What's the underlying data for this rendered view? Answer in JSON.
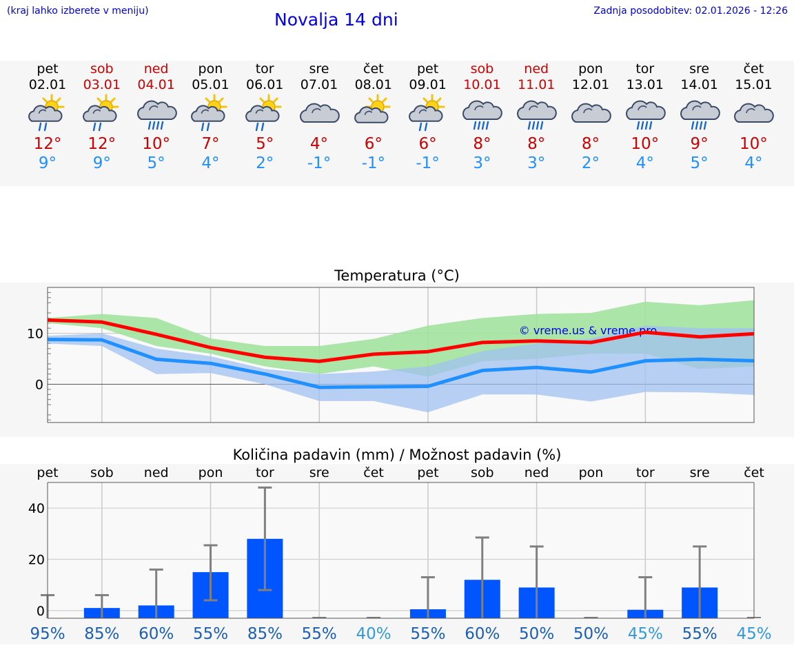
{
  "header": {
    "left_note": "(kraj lahko izberete v meniju)",
    "title": "Novalja 14 dni",
    "updated": "Zadnja posodobitev: 02.01.2026 - 12:26"
  },
  "days": [
    {
      "name": "pet",
      "date": "02.01",
      "weekend": false,
      "icon": "sun-cloud-rain-icon",
      "tmax": "12°",
      "tmin": "9°"
    },
    {
      "name": "sob",
      "date": "03.01",
      "weekend": true,
      "icon": "sun-cloud-rain-icon",
      "tmax": "12°",
      "tmin": "9°"
    },
    {
      "name": "ned",
      "date": "04.01",
      "weekend": true,
      "icon": "cloud-rain-icon",
      "tmax": "10°",
      "tmin": "5°"
    },
    {
      "name": "pon",
      "date": "05.01",
      "weekend": false,
      "icon": "sun-cloud-rain-icon",
      "tmax": "7°",
      "tmin": "4°"
    },
    {
      "name": "tor",
      "date": "06.01",
      "weekend": false,
      "icon": "sun-cloud-rain-icon",
      "tmax": "5°",
      "tmin": "2°"
    },
    {
      "name": "sre",
      "date": "07.01",
      "weekend": false,
      "icon": "cloud-icon",
      "tmax": "4°",
      "tmin": "-1°"
    },
    {
      "name": "čet",
      "date": "08.01",
      "weekend": false,
      "icon": "sun-cloud-icon",
      "tmax": "6°",
      "tmin": "-1°"
    },
    {
      "name": "pet",
      "date": "09.01",
      "weekend": false,
      "icon": "sun-cloud-rain-icon",
      "tmax": "6°",
      "tmin": "-1°"
    },
    {
      "name": "sob",
      "date": "10.01",
      "weekend": true,
      "icon": "cloud-rain-icon",
      "tmax": "8°",
      "tmin": "3°"
    },
    {
      "name": "ned",
      "date": "11.01",
      "weekend": true,
      "icon": "cloud-rain-icon",
      "tmax": "8°",
      "tmin": "3°"
    },
    {
      "name": "pon",
      "date": "12.01",
      "weekend": false,
      "icon": "cloud-icon",
      "tmax": "8°",
      "tmin": "2°"
    },
    {
      "name": "tor",
      "date": "13.01",
      "weekend": false,
      "icon": "cloud-rain-icon",
      "tmax": "10°",
      "tmin": "4°"
    },
    {
      "name": "sre",
      "date": "14.01",
      "weekend": false,
      "icon": "cloud-rain-icon",
      "tmax": "9°",
      "tmin": "5°"
    },
    {
      "name": "čet",
      "date": "15.01",
      "weekend": false,
      "icon": "cloud-icon",
      "tmax": "10°",
      "tmin": "4°"
    }
  ],
  "chart_data": [
    {
      "type": "line",
      "title": "Temperatura (°C)",
      "watermark": "© vreme.us & vreme.pro",
      "ylim": [
        -7.5,
        19
      ],
      "yticks": [
        0,
        10
      ],
      "x": [
        0,
        1,
        2,
        3,
        4,
        5,
        6,
        7,
        8,
        9,
        10,
        11,
        12,
        13
      ],
      "series": [
        {
          "name": "max",
          "color": "#ff0000",
          "values": [
            12.6,
            12.2,
            9.8,
            7.2,
            5.3,
            4.5,
            5.9,
            6.4,
            8.2,
            8.5,
            8.2,
            10.2,
            9.3,
            9.9
          ]
        },
        {
          "name": "min",
          "color": "#2090ff",
          "values": [
            8.8,
            8.7,
            4.9,
            4.1,
            2.0,
            -0.6,
            -0.5,
            -0.4,
            2.7,
            3.3,
            2.4,
            4.6,
            4.9,
            4.6
          ]
        }
      ],
      "bands": [
        {
          "name": "max-range",
          "color": "#9ee39a",
          "low": [
            12.0,
            11.0,
            7.5,
            6.0,
            3.5,
            2.0,
            3.5,
            1.5,
            4.5,
            5.0,
            6.0,
            6.0,
            3.0,
            3.5
          ],
          "high": [
            13.0,
            13.8,
            13.0,
            9.0,
            7.5,
            7.5,
            8.9,
            11.5,
            13.0,
            13.8,
            14.0,
            16.2,
            15.5,
            16.5
          ]
        },
        {
          "name": "min-range",
          "color": "#a0c0f0",
          "low": [
            8.0,
            7.5,
            2.0,
            2.2,
            0.0,
            -3.3,
            -3.3,
            -5.5,
            -2.0,
            -2.0,
            -3.4,
            -1.5,
            -1.6,
            -2.1
          ],
          "high": [
            9.5,
            10.0,
            7.0,
            5.5,
            3.0,
            2.0,
            2.5,
            3.5,
            6.5,
            8.0,
            9.0,
            11.5,
            11.0,
            11.0
          ]
        }
      ]
    },
    {
      "type": "bar",
      "title": "Količina padavin (mm) / Možnost padavin (%)",
      "categories": [
        "pet",
        "sob",
        "ned",
        "pon",
        "tor",
        "sre",
        "čet",
        "pet",
        "sob",
        "ned",
        "pon",
        "tor",
        "sre",
        "čet"
      ],
      "values": [
        0,
        1,
        2,
        15,
        28,
        0,
        0,
        0.5,
        12,
        9,
        0,
        0.3,
        9,
        0
      ],
      "error_high": [
        6,
        6,
        16,
        25.5,
        48,
        0,
        0,
        13,
        28.5,
        25,
        0,
        13,
        25,
        0
      ],
      "error_low": [
        0,
        0,
        0,
        4,
        8,
        0,
        0,
        0,
        0,
        0,
        0,
        0,
        0,
        0
      ],
      "ylim": [
        -3,
        50
      ],
      "yticks": [
        0,
        20,
        40
      ],
      "probability": [
        "95%",
        "85%",
        "60%",
        "55%",
        "85%",
        "55%",
        "40%",
        "55%",
        "60%",
        "50%",
        "50%",
        "45%",
        "55%",
        "45%"
      ],
      "bar_color": "#0055ff"
    }
  ],
  "colors": {
    "weekend": "#cc0000",
    "tmax": "#cc0000",
    "tmin": "#1e90ff",
    "prob_high": "#1a5fb4",
    "prob_low": "#3399dd"
  }
}
